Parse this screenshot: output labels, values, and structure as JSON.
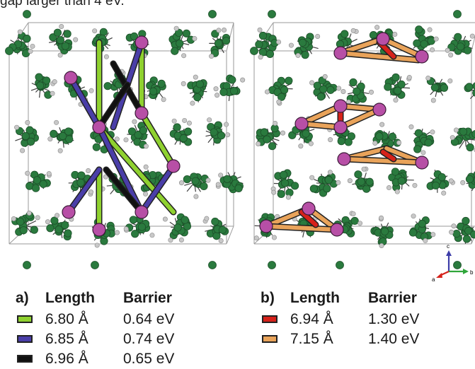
{
  "top_text": "gap larger than 4 eV.",
  "panels": [
    {
      "letter": "a)",
      "headers": {
        "length": "Length",
        "barrier": "Barrier"
      },
      "entries": [
        {
          "length": "6.80 Å",
          "barrier": "0.64 eV",
          "color": "#8fd12f"
        },
        {
          "length": "6.85 Å",
          "barrier": "0.74 eV",
          "color": "#4a3ea8"
        },
        {
          "length": "6.96 Å",
          "barrier": "0.65 eV",
          "color": "#111111"
        }
      ]
    },
    {
      "letter": "b)",
      "headers": {
        "length": "Length",
        "barrier": "Barrier"
      },
      "entries": [
        {
          "length": "6.94 Å",
          "barrier": "1.30 eV",
          "color": "#d6221a"
        },
        {
          "length": "7.15 Å",
          "barrier": "1.40 eV",
          "color": "#e9a35a"
        }
      ]
    }
  ],
  "axes_triad": {
    "c": "c",
    "b": "b",
    "a": "a"
  },
  "colors": {
    "carbon": "#2a7a3e",
    "hydrogen": "#c8c8c8",
    "metal_site": "#b74fa6",
    "cell_edge": "#9a9a9a"
  }
}
